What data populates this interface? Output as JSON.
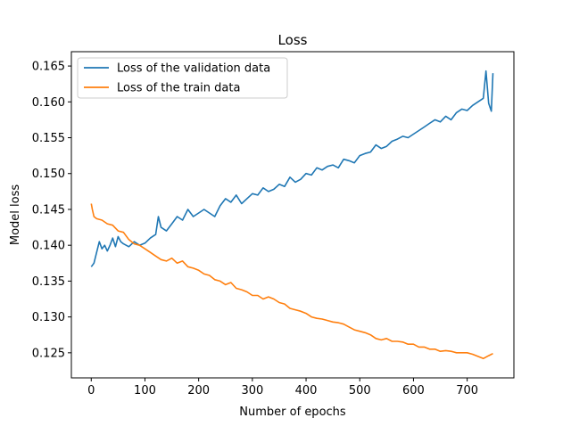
{
  "chart_data": {
    "type": "line",
    "title": "Loss",
    "xlabel": "Number of epochs",
    "ylabel": "Model loss",
    "xlim": [
      -37,
      787
    ],
    "ylim": [
      0.1215,
      0.167
    ],
    "x_ticks": [
      0,
      100,
      200,
      300,
      400,
      500,
      600,
      700
    ],
    "y_ticks": [
      0.125,
      0.13,
      0.135,
      0.14,
      0.145,
      0.15,
      0.155,
      0.16,
      0.165
    ],
    "y_tick_labels": [
      "0.125",
      "0.130",
      "0.135",
      "0.140",
      "0.145",
      "0.150",
      "0.155",
      "0.160",
      "0.165"
    ],
    "grid": false,
    "legend_position": "top-left",
    "series": [
      {
        "name": "Loss of the validation data",
        "color": "#1f77b4",
        "x": [
          0,
          5,
          10,
          15,
          20,
          25,
          30,
          35,
          40,
          45,
          50,
          55,
          60,
          70,
          80,
          90,
          100,
          110,
          120,
          125,
          130,
          140,
          150,
          160,
          170,
          180,
          190,
          200,
          210,
          220,
          230,
          240,
          250,
          260,
          270,
          280,
          290,
          300,
          310,
          320,
          330,
          340,
          350,
          360,
          370,
          380,
          390,
          400,
          410,
          420,
          430,
          440,
          450,
          460,
          470,
          480,
          490,
          500,
          510,
          520,
          530,
          540,
          550,
          560,
          570,
          580,
          590,
          600,
          610,
          620,
          630,
          640,
          650,
          660,
          670,
          680,
          690,
          700,
          710,
          720,
          730,
          735,
          740,
          745,
          748
        ],
        "values": [
          0.137,
          0.1375,
          0.139,
          0.1405,
          0.1395,
          0.14,
          0.1392,
          0.14,
          0.141,
          0.1398,
          0.1412,
          0.1405,
          0.1402,
          0.1398,
          0.1405,
          0.14,
          0.1403,
          0.141,
          0.1415,
          0.144,
          0.1425,
          0.142,
          0.143,
          0.144,
          0.1435,
          0.145,
          0.144,
          0.1445,
          0.145,
          0.1445,
          0.144,
          0.1455,
          0.1465,
          0.146,
          0.147,
          0.1458,
          0.1465,
          0.1472,
          0.147,
          0.148,
          0.1475,
          0.1478,
          0.1485,
          0.1482,
          0.1495,
          0.1488,
          0.1492,
          0.15,
          0.1498,
          0.1508,
          0.1505,
          0.151,
          0.1512,
          0.1508,
          0.152,
          0.1518,
          0.1515,
          0.1525,
          0.1528,
          0.153,
          0.154,
          0.1535,
          0.1538,
          0.1545,
          0.1548,
          0.1552,
          0.155,
          0.1555,
          0.156,
          0.1565,
          0.157,
          0.1575,
          0.1572,
          0.158,
          0.1575,
          0.1585,
          0.159,
          0.1588,
          0.1595,
          0.16,
          0.1605,
          0.1643,
          0.1598,
          0.1587,
          0.164
        ]
      },
      {
        "name": "Loss of the train data",
        "color": "#ff7f0e",
        "x": [
          0,
          2,
          5,
          10,
          20,
          30,
          40,
          50,
          60,
          70,
          80,
          90,
          100,
          110,
          120,
          130,
          140,
          150,
          160,
          170,
          180,
          190,
          200,
          210,
          220,
          230,
          240,
          250,
          260,
          270,
          280,
          290,
          300,
          310,
          320,
          330,
          340,
          350,
          360,
          370,
          380,
          390,
          400,
          410,
          420,
          430,
          440,
          450,
          460,
          470,
          480,
          490,
          500,
          510,
          520,
          530,
          540,
          550,
          560,
          570,
          580,
          590,
          600,
          610,
          620,
          630,
          640,
          650,
          660,
          670,
          680,
          690,
          700,
          710,
          720,
          730,
          740,
          748
        ],
        "values": [
          0.1458,
          0.145,
          0.144,
          0.1437,
          0.1435,
          0.143,
          0.1428,
          0.142,
          0.1418,
          0.1408,
          0.1402,
          0.14,
          0.1395,
          0.139,
          0.1385,
          0.138,
          0.1378,
          0.1382,
          0.1375,
          0.1378,
          0.137,
          0.1368,
          0.1365,
          0.136,
          0.1358,
          0.1352,
          0.135,
          0.1345,
          0.1348,
          0.134,
          0.1338,
          0.1335,
          0.133,
          0.133,
          0.1325,
          0.1328,
          0.1325,
          0.132,
          0.1318,
          0.1312,
          0.131,
          0.1308,
          0.1305,
          0.13,
          0.1298,
          0.1297,
          0.1295,
          0.1293,
          0.1292,
          0.129,
          0.1286,
          0.1282,
          0.128,
          0.1278,
          0.1275,
          0.127,
          0.1268,
          0.127,
          0.1266,
          0.1266,
          0.1265,
          0.1262,
          0.1262,
          0.1258,
          0.1258,
          0.1255,
          0.1255,
          0.1252,
          0.1253,
          0.1252,
          0.125,
          0.125,
          0.125,
          0.1248,
          0.1245,
          0.1242,
          0.1246,
          0.1249
        ]
      }
    ]
  }
}
